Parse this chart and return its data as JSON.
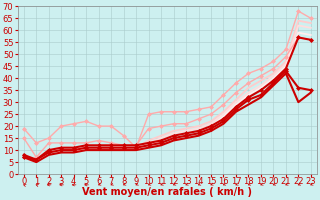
{
  "title": "",
  "xlabel": "Vent moyen/en rafales ( km/h )",
  "ylabel": "",
  "xlim": [
    -0.5,
    23.5
  ],
  "ylim": [
    0,
    70
  ],
  "xticks": [
    0,
    1,
    2,
    3,
    4,
    5,
    6,
    7,
    8,
    9,
    10,
    11,
    12,
    13,
    14,
    15,
    16,
    17,
    18,
    19,
    20,
    21,
    22,
    23
  ],
  "yticks": [
    0,
    5,
    10,
    15,
    20,
    25,
    30,
    35,
    40,
    45,
    50,
    55,
    60,
    65,
    70
  ],
  "bg_color": "#cdf0f0",
  "grid_color": "#aacccc",
  "xlabel_color": "#cc0000",
  "xlabel_fontsize": 7,
  "tick_color": "#cc0000",
  "tick_fontsize": 6,
  "lines": [
    {
      "x": [
        0,
        1,
        2,
        3,
        4,
        5,
        6,
        7,
        8,
        9,
        10,
        11,
        12,
        13,
        14,
        15,
        16,
        17,
        18,
        19,
        20,
        21,
        22,
        23
      ],
      "y": [
        19,
        13,
        15,
        20,
        21,
        22,
        20,
        20,
        16,
        11,
        25,
        26,
        26,
        26,
        27,
        28,
        33,
        38,
        42,
        44,
        47,
        52,
        68,
        65
      ],
      "color": "#ffaaaa",
      "lw": 1.0,
      "marker": "D",
      "ms": 2.0,
      "zorder": 3
    },
    {
      "x": [
        0,
        1,
        2,
        3,
        4,
        5,
        6,
        7,
        8,
        9,
        10,
        11,
        12,
        13,
        14,
        15,
        16,
        17,
        18,
        19,
        20,
        21,
        22,
        23
      ],
      "y": [
        15,
        7,
        13,
        13,
        13,
        13,
        14,
        13,
        12,
        12,
        19,
        20,
        21,
        21,
        23,
        25,
        29,
        34,
        38,
        41,
        44,
        49,
        57,
        56
      ],
      "color": "#ffaaaa",
      "lw": 1.0,
      "marker": "D",
      "ms": 2.0,
      "zorder": 3
    },
    {
      "x": [
        0,
        1,
        2,
        3,
        4,
        5,
        6,
        7,
        8,
        9,
        10,
        11,
        12,
        13,
        14,
        15,
        16,
        17,
        18,
        19,
        20,
        21,
        22,
        23
      ],
      "y": [
        8,
        6,
        10,
        11,
        11,
        11,
        11,
        11,
        11,
        11,
        14,
        16,
        18,
        19,
        20,
        22,
        26,
        31,
        36,
        39,
        42,
        47,
        64,
        63
      ],
      "color": "#ffcccc",
      "lw": 1.3,
      "marker": null,
      "ms": 0,
      "zorder": 2
    },
    {
      "x": [
        0,
        1,
        2,
        3,
        4,
        5,
        6,
        7,
        8,
        9,
        10,
        11,
        12,
        13,
        14,
        15,
        16,
        17,
        18,
        19,
        20,
        21,
        22,
        23
      ],
      "y": [
        7,
        5,
        9,
        10,
        10,
        10,
        10,
        10,
        10,
        10,
        13,
        15,
        17,
        18,
        19,
        21,
        25,
        30,
        34,
        37,
        41,
        46,
        62,
        61
      ],
      "color": "#ffdddd",
      "lw": 1.3,
      "marker": null,
      "ms": 0,
      "zorder": 2
    },
    {
      "x": [
        0,
        1,
        2,
        3,
        4,
        5,
        6,
        7,
        8,
        9,
        10,
        11,
        12,
        13,
        14,
        15,
        16,
        17,
        18,
        19,
        20,
        21,
        22,
        23
      ],
      "y": [
        7,
        6,
        10,
        11,
        11,
        12,
        12,
        12,
        11,
        11,
        12,
        14,
        16,
        17,
        18,
        20,
        24,
        29,
        33,
        36,
        40,
        45,
        59,
        58
      ],
      "color": "#ffeeee",
      "lw": 1.3,
      "marker": null,
      "ms": 0,
      "zorder": 2
    },
    {
      "x": [
        0,
        1,
        2,
        3,
        4,
        5,
        6,
        7,
        8,
        9,
        10,
        11,
        12,
        13,
        14,
        15,
        16,
        17,
        18,
        19,
        20,
        21,
        22,
        23
      ],
      "y": [
        8,
        6,
        10,
        11,
        11,
        12,
        12,
        12,
        12,
        12,
        13,
        14,
        16,
        17,
        18,
        20,
        23,
        28,
        32,
        35,
        39,
        44,
        57,
        56
      ],
      "color": "#cc0000",
      "lw": 1.5,
      "marker": "D",
      "ms": 2.0,
      "zorder": 4
    },
    {
      "x": [
        0,
        1,
        2,
        3,
        4,
        5,
        6,
        7,
        8,
        9,
        10,
        11,
        12,
        13,
        14,
        15,
        16,
        17,
        18,
        19,
        20,
        21,
        22,
        23
      ],
      "y": [
        7,
        6,
        9,
        10,
        10,
        11,
        11,
        11,
        11,
        11,
        12,
        13,
        15,
        16,
        17,
        19,
        22,
        27,
        31,
        33,
        38,
        43,
        36,
        35
      ],
      "color": "#cc0000",
      "lw": 1.5,
      "marker": "D",
      "ms": 2.0,
      "zorder": 4
    },
    {
      "x": [
        0,
        1,
        2,
        3,
        4,
        5,
        6,
        7,
        8,
        9,
        10,
        11,
        12,
        13,
        14,
        15,
        16,
        17,
        18,
        19,
        20,
        21,
        22,
        23
      ],
      "y": [
        7,
        5,
        8,
        9,
        9,
        10,
        10,
        10,
        10,
        10,
        11,
        12,
        14,
        15,
        16,
        18,
        21,
        26,
        29,
        32,
        37,
        42,
        30,
        34
      ],
      "color": "#cc0000",
      "lw": 1.5,
      "marker": null,
      "ms": 0,
      "zorder": 4
    }
  ],
  "wind_arrows": [
    [
      0,
      225
    ],
    [
      1,
      225
    ],
    [
      2,
      270
    ],
    [
      3,
      270
    ],
    [
      4,
      270
    ],
    [
      5,
      270
    ],
    [
      6,
      315
    ],
    [
      7,
      315
    ],
    [
      8,
      315
    ],
    [
      9,
      315
    ],
    [
      10,
      315
    ],
    [
      11,
      315
    ],
    [
      12,
      315
    ],
    [
      13,
      315
    ],
    [
      14,
      315
    ],
    [
      15,
      315
    ],
    [
      16,
      315
    ],
    [
      17,
      315
    ],
    [
      18,
      315
    ],
    [
      19,
      315
    ],
    [
      20,
      315
    ],
    [
      21,
      315
    ],
    [
      22,
      315
    ],
    [
      23,
      315
    ]
  ]
}
